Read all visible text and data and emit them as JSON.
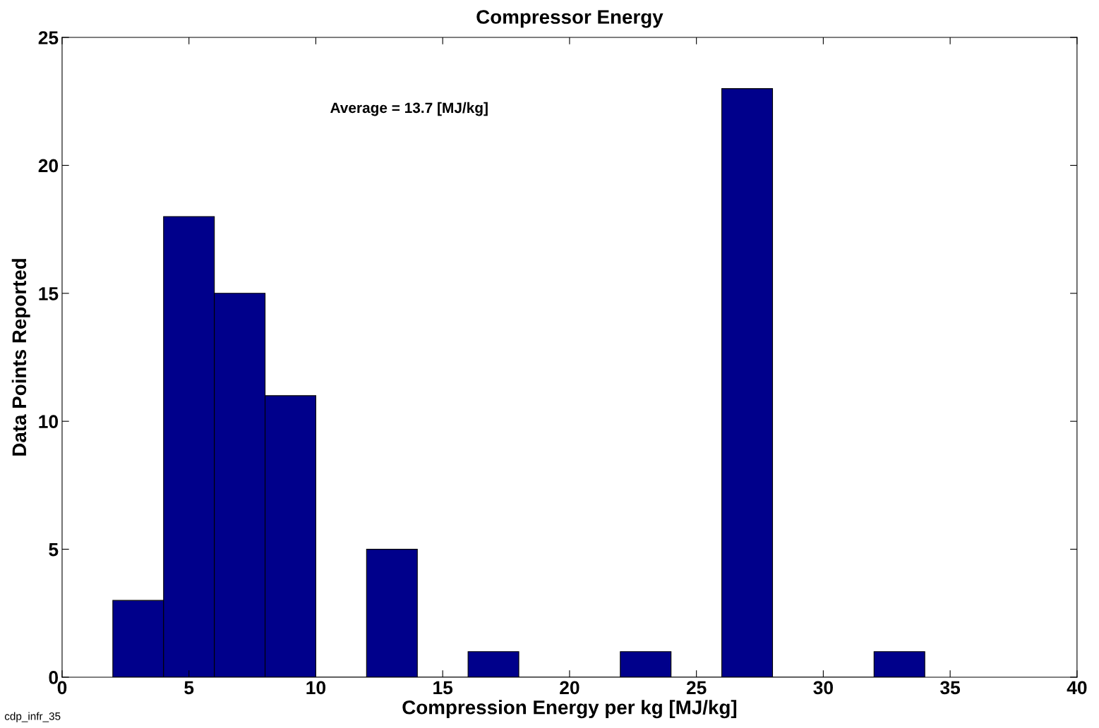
{
  "chart_data": {
    "type": "histogram",
    "title": "Compressor Energy",
    "xlabel": "Compression Energy per kg [MJ/kg]",
    "ylabel": "Data Points Reported",
    "bins": [
      2,
      4,
      6,
      8,
      10,
      12,
      14,
      16,
      18,
      20,
      22,
      24,
      26,
      28,
      30,
      32,
      34
    ],
    "values": [
      3,
      18,
      15,
      11,
      0,
      5,
      0,
      1,
      0,
      0,
      1,
      0,
      23,
      0,
      0,
      1
    ],
    "color": "#00008b",
    "xlim": [
      0,
      40
    ],
    "xticks": [
      0,
      5,
      10,
      15,
      20,
      25,
      30,
      35,
      40
    ],
    "ylim": [
      0,
      25
    ],
    "yticks": [
      0,
      5,
      10,
      15,
      20,
      25
    ],
    "grid": false,
    "legend": false,
    "annotations": [
      "Average = 13.7 [MJ/kg]",
      "cdp_infr_35"
    ]
  }
}
